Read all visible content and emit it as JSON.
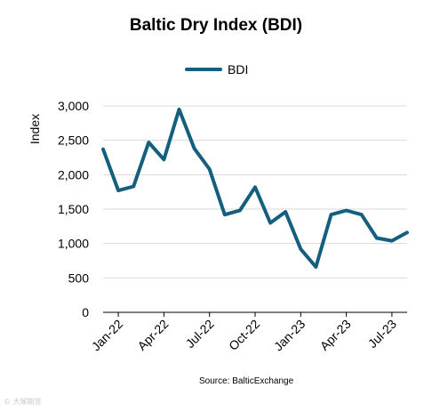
{
  "chart_data": {
    "type": "line",
    "title": "Baltic Dry Index (BDI)",
    "ylabel": "Index",
    "xlabel": "",
    "source": "Source: BalticExchange",
    "ylim": [
      0,
      3000
    ],
    "yticks": [
      0,
      500,
      1000,
      1500,
      2000,
      2500,
      3000
    ],
    "ytick_labels": [
      "0",
      "500",
      "1,000",
      "1,500",
      "2,000",
      "2,500",
      "3,000"
    ],
    "xtick_labels": [
      "Jan-22",
      "Apr-22",
      "Jul-22",
      "Oct-22",
      "Jan-23",
      "Apr-23",
      "Jul-23"
    ],
    "x": [
      "Dec-21",
      "Jan-22",
      "Feb-22",
      "Mar-22",
      "Apr-22",
      "May-22",
      "Jun-22",
      "Jul-22",
      "Aug-22",
      "Sep-22",
      "Oct-22",
      "Nov-22",
      "Dec-22",
      "Jan-23",
      "Feb-23",
      "Mar-23",
      "Apr-23",
      "May-23",
      "Jun-23",
      "Jul-23",
      "Aug-23"
    ],
    "series": [
      {
        "name": "BDI",
        "color": "#145f7e",
        "values": [
          2370,
          1770,
          1830,
          2470,
          2220,
          2950,
          2380,
          2080,
          1420,
          1480,
          1820,
          1300,
          1460,
          920,
          660,
          1420,
          1480,
          1420,
          1080,
          1040,
          1160
        ]
      }
    ],
    "grid": true,
    "legend": "top-center"
  },
  "watermark": "© 大塚期货"
}
